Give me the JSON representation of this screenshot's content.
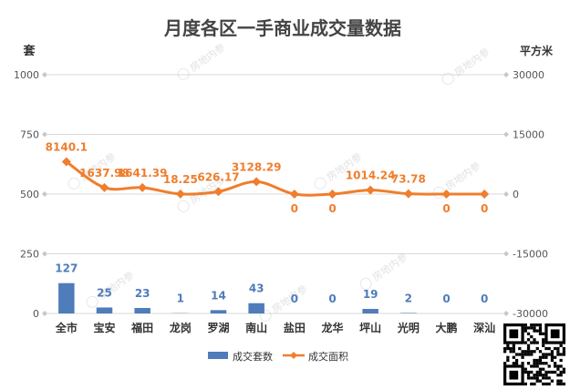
{
  "chart_data": {
    "type": "bar",
    "title": "月度各区一手商业成交量数据",
    "ylabel": "套",
    "y2label": "平方米",
    "categories": [
      "全市",
      "宝安",
      "福田",
      "龙岗",
      "罗湖",
      "南山",
      "盐田",
      "龙华",
      "坪山",
      "光明",
      "大鹏",
      "深汕"
    ],
    "series": [
      {
        "name": "成交套数",
        "type": "bar",
        "axis": "left",
        "color": "#4f7cba",
        "values": [
          127,
          25,
          23,
          1,
          14,
          43,
          0,
          0,
          19,
          2,
          0,
          0
        ],
        "labels": [
          "127",
          "25",
          "23",
          "1",
          "14",
          "43",
          "0",
          "0",
          "19",
          "2",
          "0",
          "0"
        ]
      },
      {
        "name": "成交面积",
        "type": "line",
        "axis": "right",
        "color": "#ef7e2d",
        "values": [
          8140.1,
          1637.98,
          1641.39,
          18.25,
          626.17,
          3128.29,
          0,
          0,
          1014.24,
          73.78,
          0,
          0
        ],
        "labels": [
          "8140.1",
          "1637.98",
          "1641.39",
          "18.25",
          "626.17",
          "3128.29",
          "0",
          "0",
          "1014.24",
          "73.78",
          "0",
          "0"
        ]
      }
    ],
    "ylim": [
      0,
      1000
    ],
    "y2lim": [
      -30000,
      30000
    ],
    "yticks": [
      "0",
      "250",
      "500",
      "750",
      "1000"
    ],
    "y2ticks": [
      "-30000",
      "-15000",
      "0",
      "15000",
      "30000"
    ],
    "legend_position": "bottom",
    "grid": true
  },
  "watermark": "房地内参"
}
